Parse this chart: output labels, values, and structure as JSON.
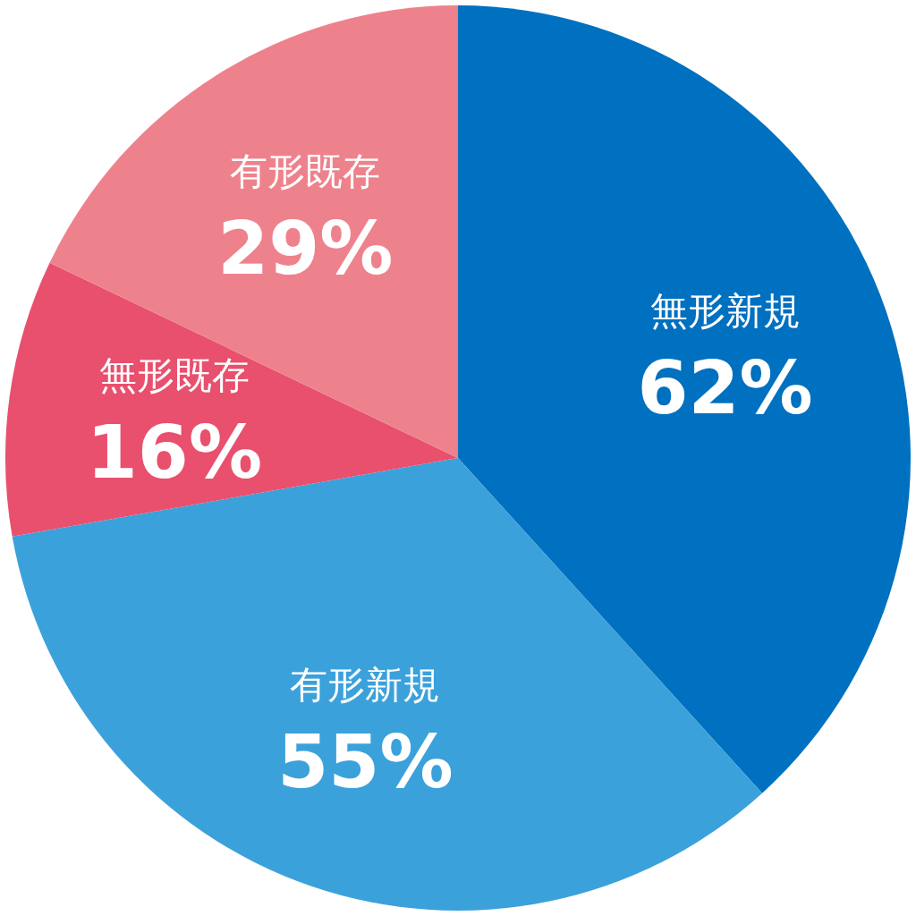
{
  "chart_data": {
    "type": "pie",
    "categories": [
      "無形新規",
      "有形新規",
      "無形既存",
      "有形既存"
    ],
    "values": [
      62,
      55,
      16,
      29
    ],
    "colors": [
      "#0070c0",
      "#3ba1db",
      "#e8506e",
      "#ee828c"
    ],
    "value_labels": [
      "62%",
      "55%",
      "16%",
      "29%"
    ],
    "legend": false
  }
}
